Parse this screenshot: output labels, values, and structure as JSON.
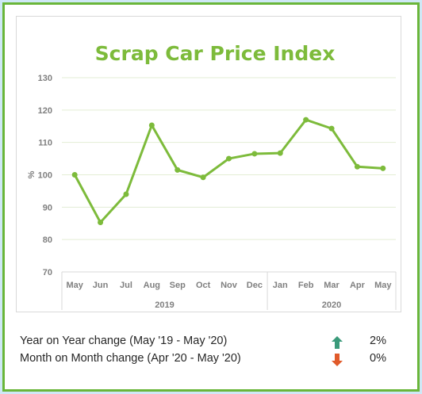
{
  "chart_data": {
    "type": "line",
    "title": "Scrap Car Price Index",
    "ylabel": "%",
    "ylim": [
      70,
      130
    ],
    "yticks": [
      70,
      80,
      90,
      100,
      110,
      120,
      130
    ],
    "grid": true,
    "categories": [
      "May",
      "Jun",
      "Jul",
      "Aug",
      "Sep",
      "Oct",
      "Nov",
      "Dec",
      "Jan",
      "Feb",
      "Mar",
      "Apr",
      "May"
    ],
    "groups": [
      {
        "label": "2019",
        "count": 8
      },
      {
        "label": "2020",
        "count": 5
      }
    ],
    "series": [
      {
        "values": [
          100.0,
          85.3,
          94.0,
          115.3,
          101.5,
          99.2,
          105.0,
          106.5,
          106.7,
          117.0,
          114.3,
          102.5,
          102.0
        ]
      }
    ],
    "colors": {
      "line": "#7dbb3b",
      "grid": "#e3edd4",
      "axis": "#d9d9d9"
    }
  },
  "summary": [
    {
      "label": "Year on Year change (May '19 - May '20)",
      "direction": "up",
      "icon": "up-arrow-icon",
      "color": "#3a9a7a",
      "value": "2%"
    },
    {
      "label": "Month on Month change (Apr '20 - May '20)",
      "direction": "down",
      "icon": "down-arrow-icon",
      "color": "#e05a2a",
      "value": "0%"
    }
  ]
}
